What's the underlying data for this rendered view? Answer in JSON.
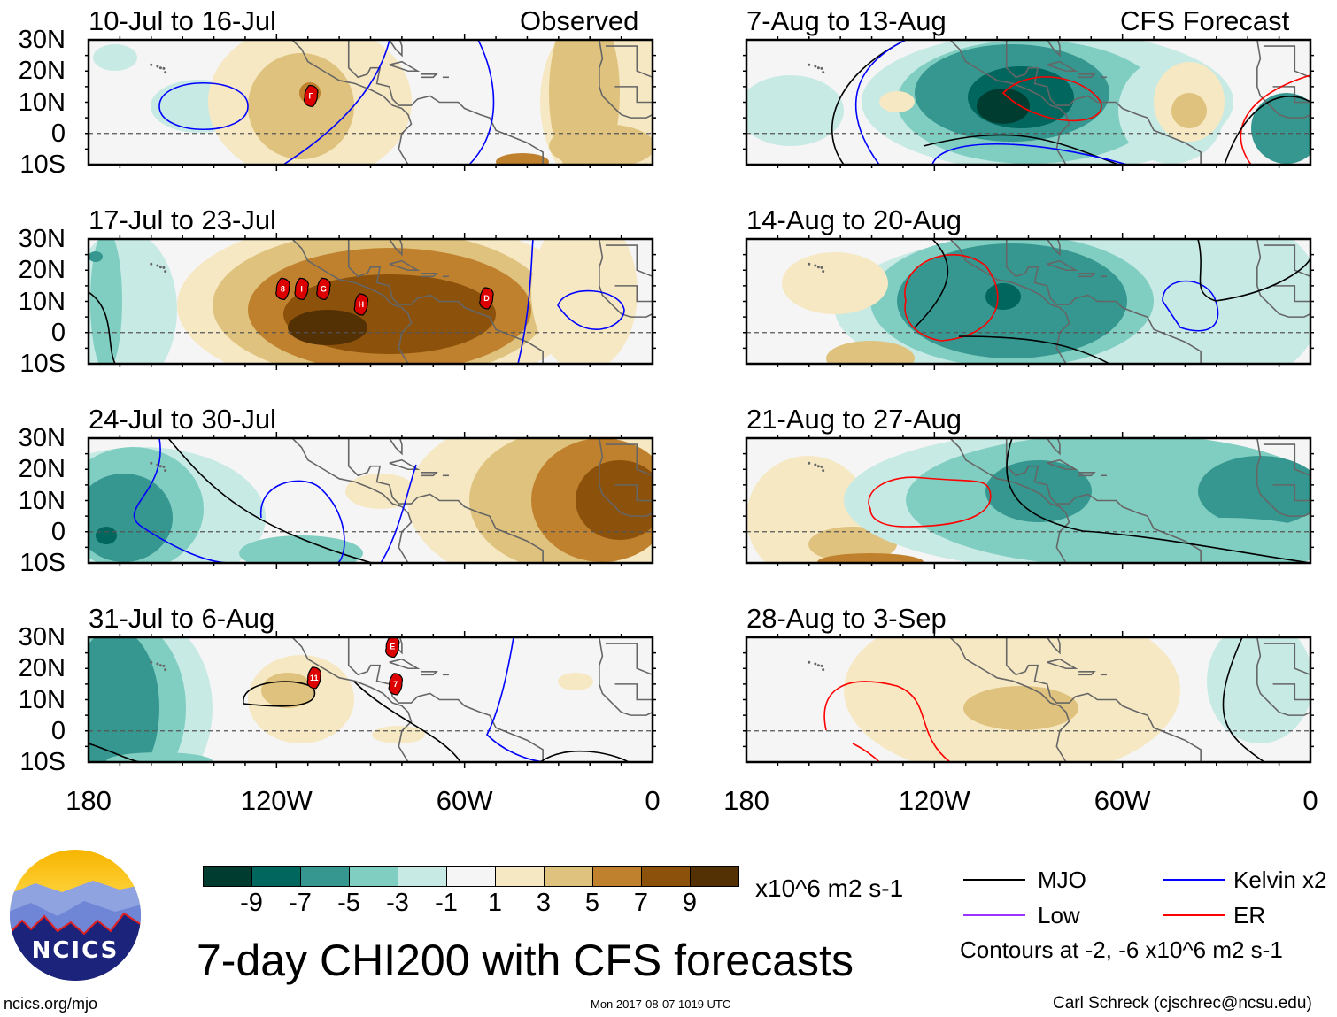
{
  "figure": {
    "title": "7-day CHI200 with CFS forecasts",
    "units": "x10^6 m2 s-1",
    "site": "ncics.org/mjo",
    "timestamp": "Mon 2017-08-07 1019 UTC",
    "author": "Carl Schreck (cjschrec@ncsu.edu)",
    "logo_text": "NCICS"
  },
  "columns": {
    "left_label": "Observed",
    "right_label": "CFS Forecast"
  },
  "panels": [
    {
      "title": "10-Jul to 16-Jul",
      "column": "observed",
      "storms": [
        {
          "label": "F",
          "lon": -109,
          "lat": 12
        }
      ]
    },
    {
      "title": "17-Jul to 23-Jul",
      "column": "observed",
      "storms": [
        {
          "label": "8",
          "lon": -118,
          "lat": 14
        },
        {
          "label": "I",
          "lon": -112,
          "lat": 14
        },
        {
          "label": "G",
          "lon": -105,
          "lat": 14
        },
        {
          "label": "H",
          "lon": -93,
          "lat": 9
        },
        {
          "label": "D",
          "lon": -53,
          "lat": 11
        }
      ]
    },
    {
      "title": "24-Jul to 30-Jul",
      "column": "observed",
      "storms": []
    },
    {
      "title": "31-Jul to 6-Aug",
      "column": "observed",
      "storms": [
        {
          "label": "E",
          "lon": -83,
          "lat": 27
        },
        {
          "label": "11",
          "lon": -108,
          "lat": 17
        },
        {
          "label": "7",
          "lon": -82,
          "lat": 15
        }
      ]
    },
    {
      "title": "7-Aug to 13-Aug",
      "column": "forecast",
      "storms": []
    },
    {
      "title": "14-Aug to 20-Aug",
      "column": "forecast",
      "storms": []
    },
    {
      "title": "21-Aug to 27-Aug",
      "column": "forecast",
      "storms": []
    },
    {
      "title": "28-Aug to 3-Sep",
      "column": "forecast",
      "storms": []
    }
  ],
  "axes": {
    "lat_labels": [
      "30N",
      "20N",
      "10N",
      "0",
      "10S"
    ],
    "lon_labels": [
      "180",
      "120W",
      "60W",
      "0"
    ]
  },
  "colorbar": {
    "labels": [
      "-9",
      "-7",
      "-5",
      "-3",
      "-1",
      "1",
      "3",
      "5",
      "7",
      "9"
    ],
    "colors": [
      "#003c30",
      "#01665e",
      "#35978f",
      "#80cdc1",
      "#c7eae5",
      "#f5f5f5",
      "#f6e8c3",
      "#dfc27d",
      "#bf812d",
      "#8c510a",
      "#543005"
    ]
  },
  "legend": {
    "items": [
      {
        "label": "MJO",
        "color": "#000000"
      },
      {
        "label": "Kelvin x2",
        "color": "#0000ff"
      },
      {
        "label": "Low",
        "color": "#9933ff"
      },
      {
        "label": "ER",
        "color": "#ff0000"
      }
    ],
    "note": "Contours at -2, -6 x10^6 m2 s-1"
  }
}
